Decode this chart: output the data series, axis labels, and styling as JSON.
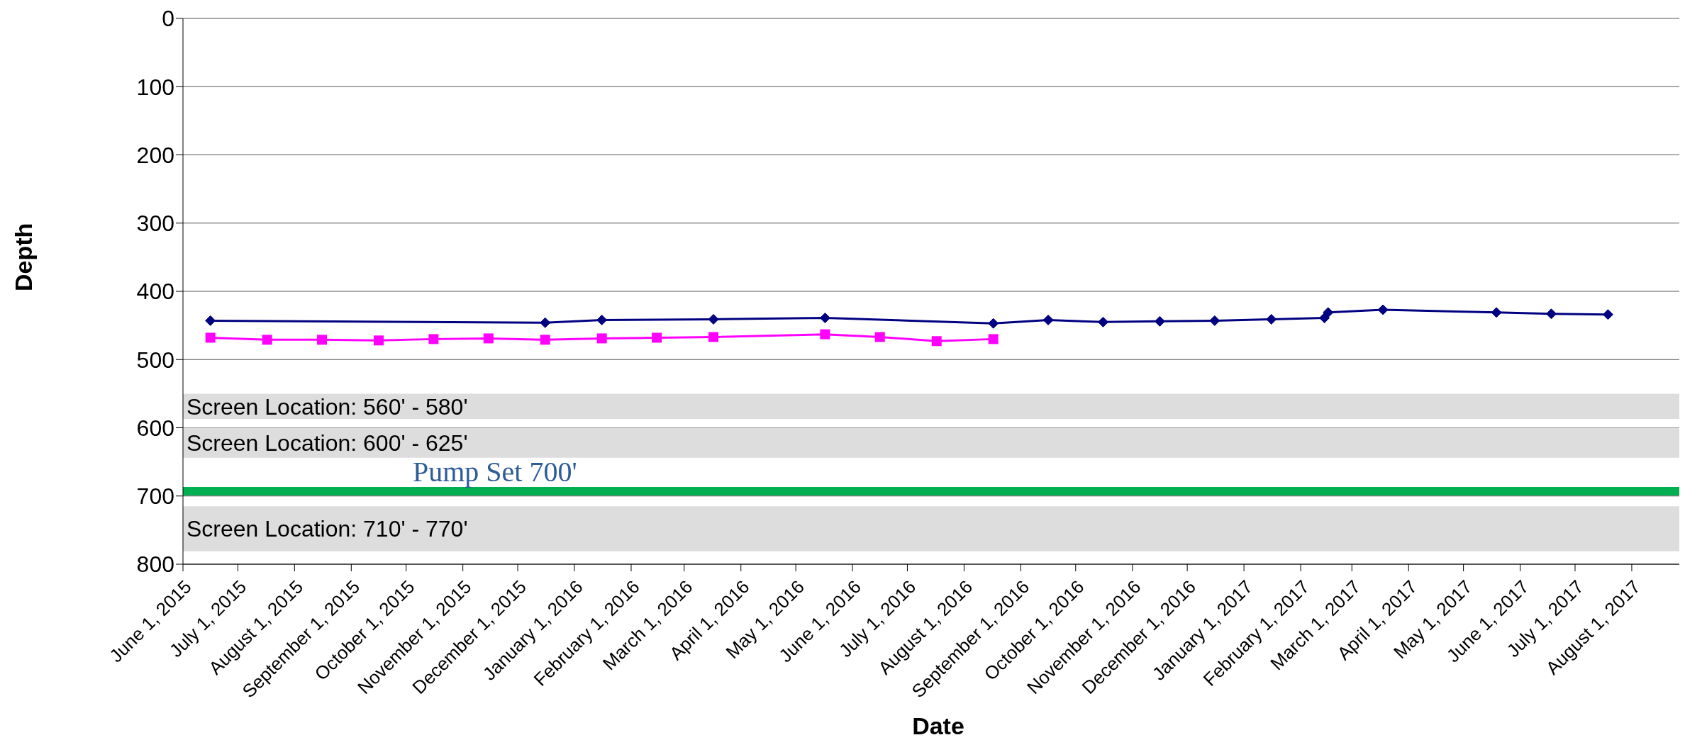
{
  "chart_data": {
    "type": "line",
    "xlabel": "Date",
    "ylabel": "Depth",
    "ylim": [
      800,
      0
    ],
    "yticks": [
      0,
      100,
      200,
      300,
      400,
      500,
      600,
      700,
      800
    ],
    "xlim": [
      "2015-06-01",
      "2017-08-27"
    ],
    "xticks": [
      {
        "value": "2015-06-01",
        "label": "June 1, 2015"
      },
      {
        "value": "2015-07-01",
        "label": "July 1, 2015"
      },
      {
        "value": "2015-08-01",
        "label": "August 1, 2015"
      },
      {
        "value": "2015-09-01",
        "label": "September 1, 2015"
      },
      {
        "value": "2015-10-01",
        "label": "October 1, 2015"
      },
      {
        "value": "2015-11-01",
        "label": "November 1, 2015"
      },
      {
        "value": "2015-12-01",
        "label": "December 1, 2015"
      },
      {
        "value": "2016-01-01",
        "label": "January 1, 2016"
      },
      {
        "value": "2016-02-01",
        "label": "February 1, 2016"
      },
      {
        "value": "2016-03-01",
        "label": "March 1, 2016"
      },
      {
        "value": "2016-04-01",
        "label": "April 1, 2016"
      },
      {
        "value": "2016-05-01",
        "label": "May 1, 2016"
      },
      {
        "value": "2016-06-01",
        "label": "June 1, 2016"
      },
      {
        "value": "2016-07-01",
        "label": "July 1, 2016"
      },
      {
        "value": "2016-08-01",
        "label": "August 1, 2016"
      },
      {
        "value": "2016-09-01",
        "label": "September 1, 2016"
      },
      {
        "value": "2016-10-01",
        "label": "October 1, 2016"
      },
      {
        "value": "2016-11-01",
        "label": "November 1, 2016"
      },
      {
        "value": "2016-12-01",
        "label": "December 1, 2016"
      },
      {
        "value": "2017-01-01",
        "label": "January 1, 2017"
      },
      {
        "value": "2017-02-01",
        "label": "February 1, 2017"
      },
      {
        "value": "2017-03-01",
        "label": "March 1, 2017"
      },
      {
        "value": "2017-04-01",
        "label": "April 1, 2017"
      },
      {
        "value": "2017-05-01",
        "label": "May 1, 2017"
      },
      {
        "value": "2017-06-01",
        "label": "June 1, 2017"
      },
      {
        "value": "2017-07-01",
        "label": "July 1, 2017"
      },
      {
        "value": "2017-08-01",
        "label": "August 1, 2017"
      }
    ],
    "grid": "y",
    "line_style": "solid",
    "series": [
      {
        "color": "#000080",
        "marker": "diamond",
        "x": [
          "2015-06-16",
          "2015-12-16",
          "2016-01-16",
          "2016-03-17",
          "2016-05-17",
          "2016-08-17",
          "2016-09-16",
          "2016-10-16",
          "2016-11-16",
          "2016-12-16",
          "2017-01-16",
          "2017-02-14",
          "2017-02-16",
          "2017-03-18",
          "2017-05-19",
          "2017-06-18",
          "2017-07-19"
        ],
        "values": [
          443,
          446,
          442,
          441,
          439,
          447,
          442,
          445,
          444,
          443,
          441,
          439,
          431,
          427,
          431,
          433,
          434
        ]
      },
      {
        "color": "#ff00ff",
        "marker": "square",
        "x": [
          "2015-06-16",
          "2015-07-17",
          "2015-08-16",
          "2015-09-16",
          "2015-10-16",
          "2015-11-15",
          "2015-12-16",
          "2016-01-16",
          "2016-02-15",
          "2016-03-17",
          "2016-05-17",
          "2016-06-16",
          "2016-07-17",
          "2016-08-17"
        ],
        "values": [
          468,
          471,
          471,
          472,
          470,
          469,
          471,
          469,
          468,
          467,
          463,
          467,
          473,
          470
        ]
      }
    ],
    "bands": [
      {
        "axis": "y",
        "from": 550,
        "to": 587,
        "label": "Screen Location: 560' - 580'",
        "color": "#dddddd"
      },
      {
        "axis": "y",
        "from": 600,
        "to": 644,
        "label": "Screen Location: 600' - 625'",
        "color": "#dddddd"
      },
      {
        "axis": "y",
        "from": 715,
        "to": 781,
        "label": "Screen Location: 710' - 770'",
        "color": "#dddddd"
      }
    ],
    "ref_lines": [
      {
        "axis": "y",
        "value": 693,
        "label": "Pump Set 700'",
        "color": "#00b050",
        "line_style": "solid"
      }
    ]
  }
}
